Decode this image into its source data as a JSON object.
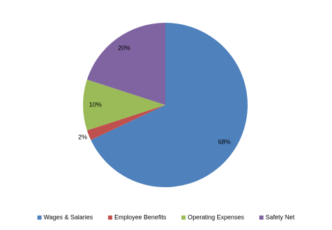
{
  "chart_data": {
    "type": "pie",
    "categories": [
      "Wages & Salaries",
      "Employee Benefits",
      "Operating Expenses",
      "Safety Net"
    ],
    "values": [
      68,
      2,
      10,
      20
    ],
    "value_labels": [
      "68%",
      "2%",
      "10%",
      "20%"
    ],
    "colors": [
      "#4f81bd",
      "#c0504d",
      "#9bbb59",
      "#8064a2"
    ],
    "legend": "bottom"
  }
}
